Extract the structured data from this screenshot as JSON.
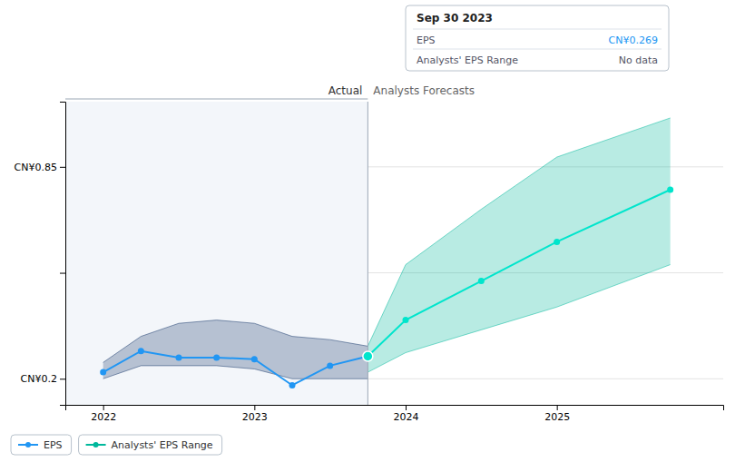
{
  "chart_data": {
    "type": "line",
    "xlim": [
      2021.75,
      2026.1
    ],
    "ylim": [
      0.12,
      1.05
    ],
    "xticks": [
      2022,
      2023,
      2024,
      2025
    ],
    "yticks": [
      {
        "value": 0.2,
        "label": "CN¥0.2"
      },
      {
        "value": 0.525,
        "label": null
      },
      {
        "value": 0.85,
        "label": "CN¥0.85"
      }
    ],
    "grid": true,
    "legend": "lower left",
    "series": [
      {
        "type": "area",
        "color": "#1a3a6b",
        "x": [
          2022.0,
          2022.25,
          2022.5,
          2022.75,
          2023.0,
          2023.25,
          2023.5,
          2023.75
        ],
        "upper": [
          0.25,
          0.33,
          0.37,
          0.38,
          0.37,
          0.33,
          0.32,
          0.3
        ],
        "lower": [
          0.2,
          0.24,
          0.24,
          0.24,
          0.23,
          0.2,
          0.2,
          0.2
        ]
      },
      {
        "name": "Analysts' EPS Range",
        "type": "area",
        "color": "#00b89c",
        "x": [
          2023.75,
          2024.0,
          2024.5,
          2025.0,
          2025.75
        ],
        "upper": [
          0.3,
          0.55,
          0.72,
          0.88,
          1.0
        ],
        "lower": [
          0.22,
          0.28,
          0.35,
          0.42,
          0.55
        ]
      },
      {
        "name": "EPS",
        "type": "line",
        "color": "#2196f3",
        "marker": "circle",
        "x": [
          2022.0,
          2022.25,
          2022.5,
          2022.75,
          2023.0,
          2023.25,
          2023.5,
          2023.75
        ],
        "values": [
          0.22,
          0.285,
          0.265,
          0.265,
          0.26,
          0.18,
          0.24,
          0.269
        ]
      },
      {
        "type": "line",
        "color": "#00e5cc",
        "marker": "circle",
        "x": [
          2023.75,
          2024.0,
          2024.5,
          2025.0,
          2025.75
        ],
        "values": [
          0.269,
          0.38,
          0.5,
          0.62,
          0.78
        ]
      }
    ],
    "annotations": [
      {
        "text": "Actual"
      },
      {
        "text": "Analysts Forecasts"
      }
    ],
    "tooltip": {
      "title": "Sep 30 2023",
      "rows": [
        {
          "label": "EPS",
          "text": "CN¥0.269",
          "color": "#2196f3"
        },
        {
          "label": "Analysts' EPS Range",
          "text": "No data"
        }
      ]
    }
  }
}
